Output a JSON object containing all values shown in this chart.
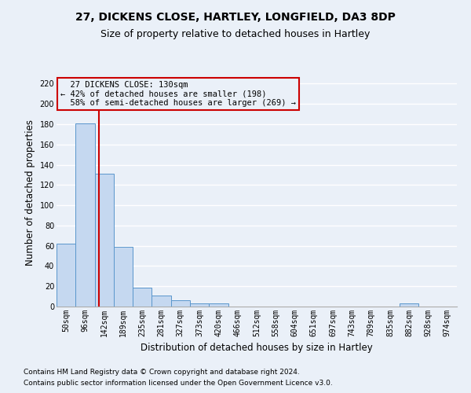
{
  "title": "27, DICKENS CLOSE, HARTLEY, LONGFIELD, DA3 8DP",
  "subtitle": "Size of property relative to detached houses in Hartley",
  "xlabel": "Distribution of detached houses by size in Hartley",
  "ylabel": "Number of detached properties",
  "footnote1": "Contains HM Land Registry data © Crown copyright and database right 2024.",
  "footnote2": "Contains public sector information licensed under the Open Government Licence v3.0.",
  "bar_labels": [
    "50sqm",
    "96sqm",
    "142sqm",
    "189sqm",
    "235sqm",
    "281sqm",
    "327sqm",
    "373sqm",
    "420sqm",
    "466sqm",
    "512sqm",
    "558sqm",
    "604sqm",
    "651sqm",
    "697sqm",
    "743sqm",
    "789sqm",
    "835sqm",
    "882sqm",
    "928sqm",
    "974sqm"
  ],
  "bar_values": [
    62,
    181,
    131,
    59,
    19,
    11,
    6,
    3,
    3,
    0,
    0,
    0,
    0,
    0,
    0,
    0,
    0,
    0,
    3,
    0,
    0
  ],
  "bar_color": "#c5d8f0",
  "bar_edge_color": "#5a96cc",
  "bg_color": "#eaf0f8",
  "grid_color": "#ffffff",
  "ylim": [
    0,
    225
  ],
  "yticks": [
    0,
    20,
    40,
    60,
    80,
    100,
    120,
    140,
    160,
    180,
    200,
    220
  ],
  "property_line_x": 1.74,
  "property_line_color": "#cc0000",
  "annotation_text": "  27 DICKENS CLOSE: 130sqm\n← 42% of detached houses are smaller (198)\n  58% of semi-detached houses are larger (269) →",
  "annotation_box_color": "#cc0000",
  "title_fontsize": 10,
  "subtitle_fontsize": 9,
  "axis_fontsize": 8.5,
  "tick_fontsize": 7,
  "footnote_fontsize": 6.5
}
